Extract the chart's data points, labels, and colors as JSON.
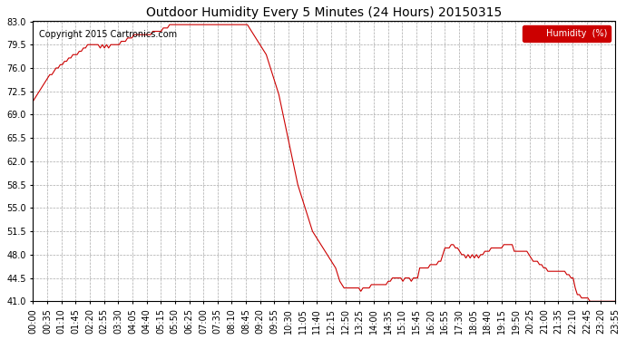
{
  "title": "Outdoor Humidity Every 5 Minutes (24 Hours) 20150315",
  "copyright": "Copyright 2015 Cartronics.com",
  "legend_label": "Humidity  (%)",
  "legend_bg": "#cc0000",
  "legend_text_color": "#ffffff",
  "line_color": "#cc0000",
  "bg_color": "#ffffff",
  "grid_color": "#aaaaaa",
  "ylim": [
    41.0,
    83.0
  ],
  "yticks": [
    41.0,
    44.5,
    48.0,
    51.5,
    55.0,
    58.5,
    62.0,
    65.5,
    69.0,
    72.5,
    76.0,
    79.5,
    83.0
  ],
  "humidity_data": [
    71.0,
    71.5,
    72.0,
    72.5,
    73.0,
    73.5,
    74.0,
    74.5,
    75.0,
    75.0,
    75.5,
    76.0,
    76.0,
    76.5,
    76.5,
    77.0,
    77.0,
    77.5,
    77.5,
    78.0,
    78.0,
    78.0,
    78.5,
    78.5,
    79.0,
    79.0,
    79.5,
    79.5,
    79.5,
    79.5,
    79.5,
    79.5,
    79.0,
    79.5,
    79.0,
    79.5,
    79.0,
    79.5,
    79.5,
    79.5,
    79.5,
    79.5,
    80.0,
    80.0,
    80.0,
    80.5,
    80.5,
    80.5,
    81.0,
    81.0,
    81.0,
    81.0,
    81.0,
    81.0,
    81.0,
    81.0,
    81.0,
    81.5,
    81.5,
    81.5,
    81.5,
    81.5,
    82.0,
    82.0,
    82.0,
    82.5,
    82.5,
    82.5,
    82.5,
    82.5,
    82.5,
    82.5,
    82.5,
    82.5,
    82.5,
    82.5,
    82.5,
    82.5,
    82.5,
    82.5,
    82.5,
    82.5,
    82.5,
    82.5,
    82.5,
    82.5,
    82.5,
    82.5,
    82.5,
    82.5,
    82.5,
    82.5,
    82.5,
    82.5,
    82.5,
    82.5,
    82.5,
    82.5,
    82.5,
    82.5,
    82.5,
    82.5,
    82.5,
    82.0,
    81.5,
    81.0,
    80.5,
    80.0,
    79.5,
    79.0,
    78.5,
    78.0,
    77.0,
    76.0,
    75.0,
    74.0,
    73.0,
    72.0,
    70.5,
    69.0,
    67.5,
    66.0,
    64.5,
    63.0,
    61.5,
    60.0,
    58.5,
    57.5,
    56.5,
    55.5,
    54.5,
    53.5,
    52.5,
    51.5,
    51.0,
    50.5,
    50.0,
    49.5,
    49.0,
    48.5,
    48.0,
    47.5,
    47.0,
    46.5,
    46.0,
    45.0,
    44.0,
    43.5,
    43.0,
    43.0,
    43.0,
    43.0,
    43.0,
    43.0,
    43.0,
    43.0,
    42.5,
    43.0,
    43.0,
    43.0,
    43.0,
    43.5,
    43.5,
    43.5,
    43.5,
    43.5,
    43.5,
    43.5,
    43.5,
    44.0,
    44.0,
    44.5,
    44.5,
    44.5,
    44.5,
    44.5,
    44.0,
    44.5,
    44.5,
    44.5,
    44.0,
    44.5,
    44.5,
    44.5,
    46.0,
    46.0,
    46.0,
    46.0,
    46.0,
    46.5,
    46.5,
    46.5,
    46.5,
    47.0,
    47.0,
    48.0,
    49.0,
    49.0,
    49.0,
    49.5,
    49.5,
    49.0,
    49.0,
    48.5,
    48.0,
    48.0,
    47.5,
    48.0,
    47.5,
    48.0,
    47.5,
    48.0,
    47.5,
    48.0,
    48.0,
    48.5,
    48.5,
    48.5,
    49.0,
    49.0,
    49.0,
    49.0,
    49.0,
    49.0,
    49.5,
    49.5,
    49.5,
    49.5,
    49.5,
    48.5,
    48.5,
    48.5,
    48.5,
    48.5,
    48.5,
    48.5,
    48.0,
    47.5,
    47.0,
    47.0,
    47.0,
    46.5,
    46.5,
    46.0,
    46.0,
    45.5,
    45.5,
    45.5,
    45.5,
    45.5,
    45.5,
    45.5,
    45.5,
    45.5,
    45.0,
    45.0,
    44.5,
    44.5,
    43.0,
    42.0,
    42.0,
    41.5,
    41.5,
    41.5,
    41.5,
    41.0,
    41.0,
    41.0,
    41.0,
    41.0,
    41.0,
    41.0,
    41.0,
    41.0,
    41.0,
    41.0,
    41.0,
    41.0
  ],
  "x_tick_labels": [
    "00:00",
    "00:35",
    "01:10",
    "01:45",
    "02:20",
    "02:55",
    "03:30",
    "04:05",
    "04:40",
    "05:15",
    "05:50",
    "06:25",
    "07:00",
    "07:35",
    "08:10",
    "08:45",
    "09:20",
    "09:55",
    "10:30",
    "11:05",
    "11:40",
    "12:15",
    "12:50",
    "13:25",
    "14:00",
    "14:35",
    "15:10",
    "15:45",
    "16:20",
    "16:55",
    "17:30",
    "18:05",
    "18:40",
    "19:15",
    "19:50",
    "20:25",
    "21:00",
    "21:35",
    "22:10",
    "22:45",
    "23:20",
    "23:55"
  ]
}
